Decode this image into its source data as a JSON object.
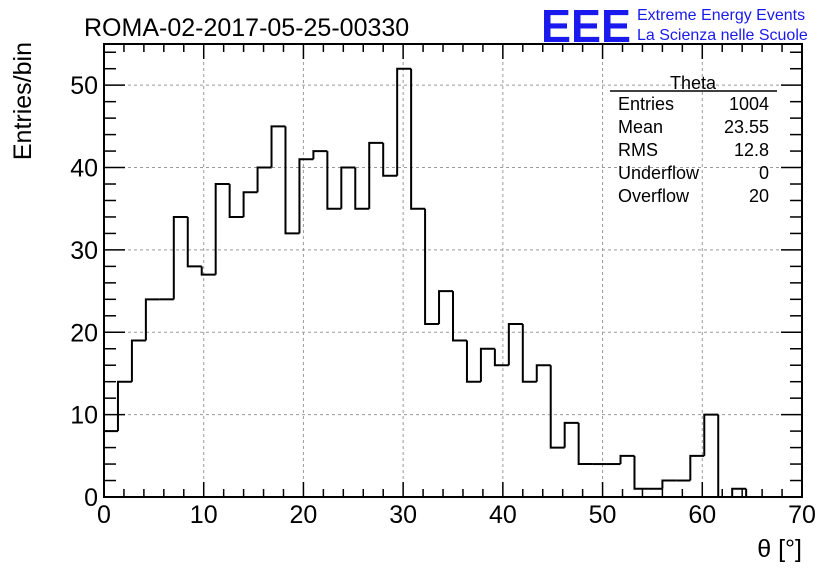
{
  "chart_data": {
    "type": "bar",
    "histogram_style": "step",
    "title": "ROMA-02-2017-05-25-00330",
    "xlabel": "θ [°]",
    "ylabel": "Entries/bin",
    "xlim": [
      0,
      70
    ],
    "ylim": [
      0,
      55
    ],
    "x_ticks": [
      0,
      10,
      20,
      30,
      40,
      50,
      60,
      70
    ],
    "y_ticks": [
      0,
      10,
      20,
      30,
      40,
      50
    ],
    "grid": true,
    "bin_width": 1.4,
    "series": [
      {
        "values": [
          8,
          14,
          19,
          24,
          24,
          34,
          28,
          27,
          38,
          34,
          37,
          40,
          45,
          32,
          41,
          42,
          35,
          40,
          35,
          43,
          39,
          52,
          35,
          21,
          25,
          19,
          14,
          18,
          16,
          21,
          14,
          16,
          6,
          9,
          4,
          4,
          4,
          5,
          1,
          1,
          2,
          2,
          5,
          10,
          0,
          1,
          0,
          0,
          0,
          0
        ],
        "color": "#000000"
      }
    ],
    "stats_box": {
      "title": "Theta",
      "rows": [
        {
          "label": "Entries",
          "value": "1004"
        },
        {
          "label": "Mean",
          "value": "23.55"
        },
        {
          "label": "RMS",
          "value": "12.8"
        },
        {
          "label": "Underflow",
          "value": "0"
        },
        {
          "label": "Overflow",
          "value": "20"
        }
      ]
    }
  },
  "logo": {
    "mark": "EEE",
    "line1": "Extreme Energy Events",
    "line2": "La Scienza nelle Scuole",
    "color": "#1a1aee"
  },
  "colors": {
    "grid": "#9a9a9a",
    "axis": "#000000",
    "line": "#000000"
  }
}
